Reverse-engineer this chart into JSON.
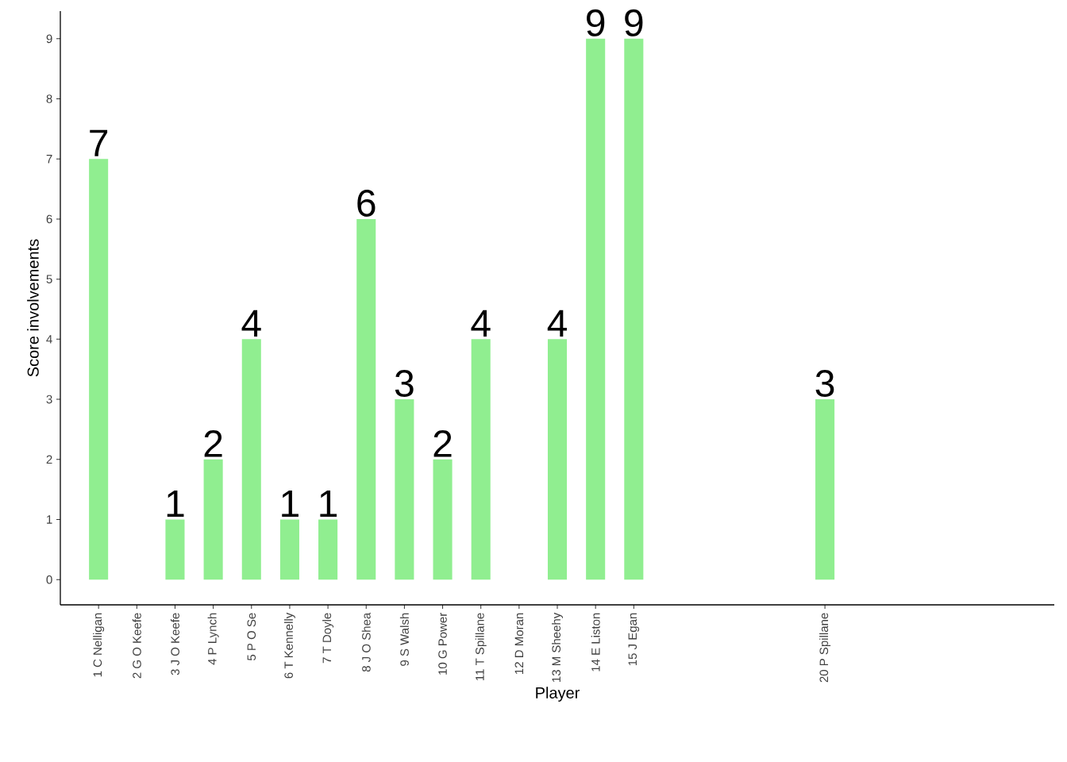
{
  "chart_data": {
    "type": "bar",
    "xlabel": "Player",
    "ylabel": "Score involvements",
    "categories": [
      "1 C Nelligan",
      "2 G O Keefe",
      "3 J  O Keefe",
      "4 P Lynch",
      "5 P O Se",
      "6 T Kennelly",
      "7 T Doyle",
      "8 J O Shea",
      "9 S Walsh",
      "10 G Power",
      "11 T Spillane",
      "12 D Moran",
      "13 M Sheehy",
      "14 E Liston",
      "15 J Egan",
      null,
      null,
      null,
      null,
      "20 P Spillane",
      null,
      null,
      null,
      null,
      null
    ],
    "values": [
      7,
      null,
      1,
      2,
      4,
      1,
      1,
      6,
      3,
      2,
      4,
      null,
      4,
      9,
      9,
      null,
      null,
      null,
      null,
      3,
      null,
      null,
      null,
      null,
      null
    ],
    "color": "#90ee90",
    "ylim": [
      -0.42,
      9.46
    ],
    "yticks": [
      0,
      1,
      2,
      3,
      4,
      5,
      6,
      7,
      8,
      9
    ],
    "grid": false,
    "data_labels": true
  }
}
